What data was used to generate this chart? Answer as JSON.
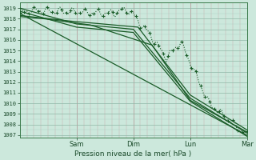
{
  "xlabel": "Pression niveau de la mer( hPa )",
  "bg_color": "#cce8dc",
  "line_color": "#1a5c28",
  "ylim": [
    1006.8,
    1019.5
  ],
  "yticks": [
    1007,
    1008,
    1009,
    1010,
    1011,
    1012,
    1013,
    1014,
    1015,
    1016,
    1017,
    1018,
    1019
  ],
  "day_labels": [
    "Sam",
    "Dim",
    "Lun",
    "Mar"
  ],
  "day_hours": [
    24,
    48,
    72,
    96
  ],
  "total_hours": 96,
  "num_points": 193
}
